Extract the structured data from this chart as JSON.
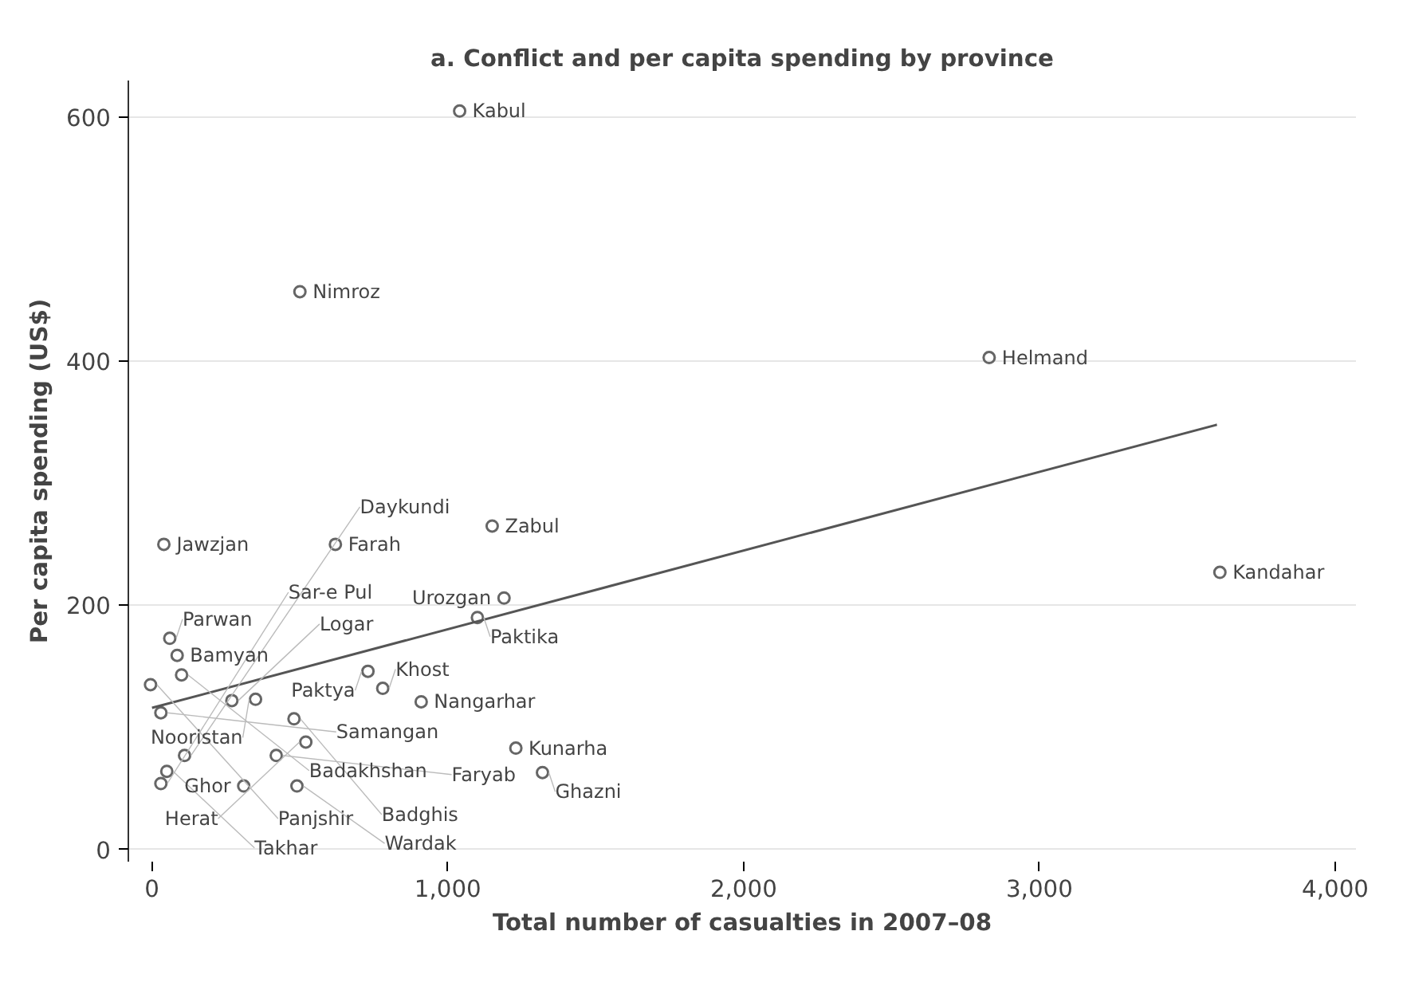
{
  "chart_data": {
    "type": "scatter",
    "title": "a. Conflict and per capita spending by province",
    "xlabel": "Total number of casualties in 2007–08",
    "ylabel": "Per capita spending (US$)",
    "xlim": [
      -80,
      4070
    ],
    "ylim": [
      -10,
      630
    ],
    "xticks": [
      0,
      {
        "value": 1000,
        "label": "1,000"
      },
      {
        "value": 2000,
        "label": "2,000"
      },
      {
        "value": 3000,
        "label": "3,000"
      },
      {
        "value": 4000,
        "label": "4,000"
      }
    ],
    "yticks": [
      0,
      200,
      400,
      600
    ],
    "grid": "y",
    "marker": "circle",
    "series": [
      {
        "color": "#666666",
        "x": [
          1040,
          500,
          2830,
          3610,
          40,
          620,
          1150,
          1190,
          1100,
          60,
          85,
          100,
          -5,
          30,
          730,
          780,
          910,
          350,
          270,
          480,
          520,
          1230,
          1320,
          110,
          420,
          50,
          30,
          490,
          310
        ],
        "values": [
          605,
          457,
          403,
          227,
          250,
          250,
          265,
          206,
          190,
          173,
          159,
          143,
          135,
          112,
          146,
          132,
          121,
          123,
          122,
          107,
          88,
          83,
          63,
          77,
          77,
          64,
          54,
          52,
          52
        ]
      },
      {
        "type": "line",
        "marker": "none",
        "color": "#555555",
        "x": [
          0,
          3600
        ],
        "values": [
          116,
          348
        ]
      }
    ],
    "annotations": [
      {
        "text": "Kabul",
        "x": 1040,
        "y": 605
      },
      {
        "text": "Nimroz",
        "x": 500,
        "y": 457
      },
      {
        "text": "Helmand",
        "x": 2830,
        "y": 403
      },
      {
        "text": "Kandahar",
        "x": 3610,
        "y": 227
      },
      {
        "text": "Jawzjan",
        "x": 40,
        "y": 250
      },
      {
        "text": "Farah",
        "x": 620,
        "y": 250
      },
      {
        "text": "Zabul",
        "x": 1150,
        "y": 265
      },
      {
        "text": "Urozgan",
        "x": 1190,
        "y": 206
      },
      {
        "text": "Paktika",
        "x": 1100,
        "y": 190
      },
      {
        "text": "Parwan",
        "x": 60,
        "y": 173
      },
      {
        "text": "Bamyan",
        "x": 85,
        "y": 159
      },
      {
        "text": "Badakhshan",
        "x": 100,
        "y": 143
      },
      {
        "text": "Panjshir",
        "x": -5,
        "y": 135
      },
      {
        "text": "Samangan",
        "x": 30,
        "y": 112
      },
      {
        "text": "Paktya",
        "x": 730,
        "y": 146
      },
      {
        "text": "Khost",
        "x": 780,
        "y": 132
      },
      {
        "text": "Nangarhar",
        "x": 910,
        "y": 121
      },
      {
        "text": "Nooristan",
        "x": 350,
        "y": 123
      },
      {
        "text": "Logar",
        "x": 270,
        "y": 122
      },
      {
        "text": "Badghis",
        "x": 480,
        "y": 107
      },
      {
        "text": "Herat",
        "x": 520,
        "y": 88
      },
      {
        "text": "Kunarha",
        "x": 1230,
        "y": 83
      },
      {
        "text": "Ghazni",
        "x": 1320,
        "y": 63
      },
      {
        "text": "Daykundi",
        "x": 110,
        "y": 77
      },
      {
        "text": "Faryab",
        "x": 420,
        "y": 77
      },
      {
        "text": "Takhar",
        "x": 50,
        "y": 64
      },
      {
        "text": "Sar-e Pul",
        "x": 30,
        "y": 54
      },
      {
        "text": "Wardak",
        "x": 490,
        "y": 52
      },
      {
        "text": "Ghor",
        "x": 310,
        "y": 52
      }
    ]
  }
}
